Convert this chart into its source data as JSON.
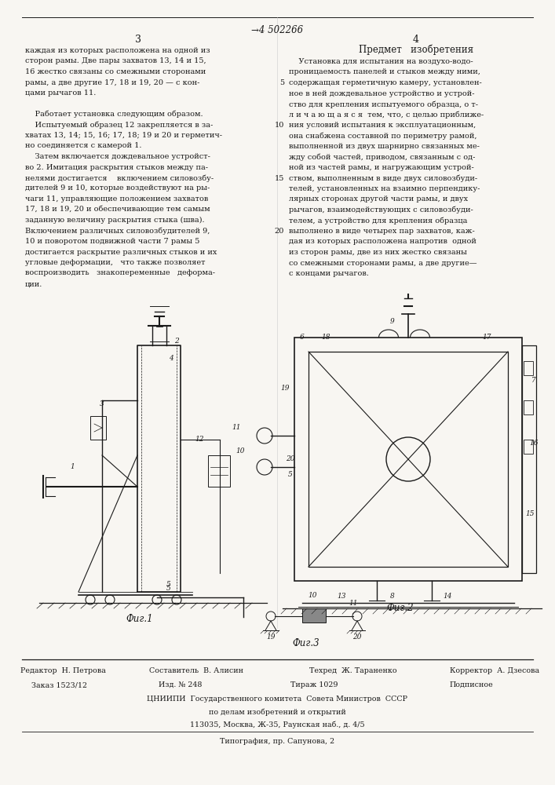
{
  "page_number_left": "3",
  "page_number_right": "4",
  "patent_number": "→4 502266",
  "left_col_lines": [
    "каждая из которых расположена на одной из",
    "сторон рамы. Две пары захватов 13, 14 и 15,",
    "16 жестко связаны со смежными сторонами",
    "рамы, а две другие 17, 18 и 19, 20 — с кон-",
    "цами рычагов 11.",
    "",
    "    Работает установка следующим образом.",
    "    Испытуемый образец 12 закрепляется в за-",
    "хватах 13, 14; 15, 16; 17, 18; 19 и 20 и герметич-",
    "но соединяется с камерой 1.",
    "    Затем включается дождевальное устройст-",
    "во 2. Имитация раскрытия стыков между па-",
    "нелями достигается    включением силовозбу-",
    "дителей 9 и 10, которые воздействуют на ры-",
    "чаги 11, управляющие положением захватов",
    "17, 18 и 19, 20 и обеспечивающие тем самым",
    "заданную величину раскрытия стыка (шва).",
    "Включением различных силовозбудителей 9,",
    "10 и поворотом подвижной части 7 рамы 5",
    "достигается раскрытие различных стыков и их",
    "угловые деформации,   что также позволяет",
    "воспроизводить   знакопеременные   деформа-",
    "ции."
  ],
  "right_col_title": "Предмет   изобретения",
  "right_col_lines": [
    "    Установка для испытания на воздухо-водо-",
    "проницаемость панелей и стыков между ними,",
    "содержащая герметичную камеру, установлен-",
    "ное в ней дождевальное устройство и устрой-",
    "ство для крепления испытуемого образца, о т-",
    "л и ч а ю щ а я с я  тем, что, с целью приближе-",
    "ния условий испытания к эксплуатационным,",
    "она снабжена составной по периметру рамой,",
    "выполненной из двух шарнирно связанных ме-",
    "жду собой частей, приводом, связанным с од-",
    "ной из частей рамы, и нагружающим устрой-",
    "ством, выполненным в виде двух силовозбуди-",
    "телей, установленных на взаимно перпендику-",
    "лярных сторонах другой части рамы, и двух",
    "рычагов, взаимодействующих с силовозбуди-",
    "телем, а устройство для крепления образца",
    "выполнено в виде четырех пар захватов, каж-",
    "дая из которых расположена напротив  одной",
    "из сторон рамы, две из них жестко связаны",
    "со смежными сторонами рамы, а две другие—",
    "с концами рычагов."
  ],
  "bg_color": "#f8f6f2",
  "text_color": "#1a1a1a"
}
